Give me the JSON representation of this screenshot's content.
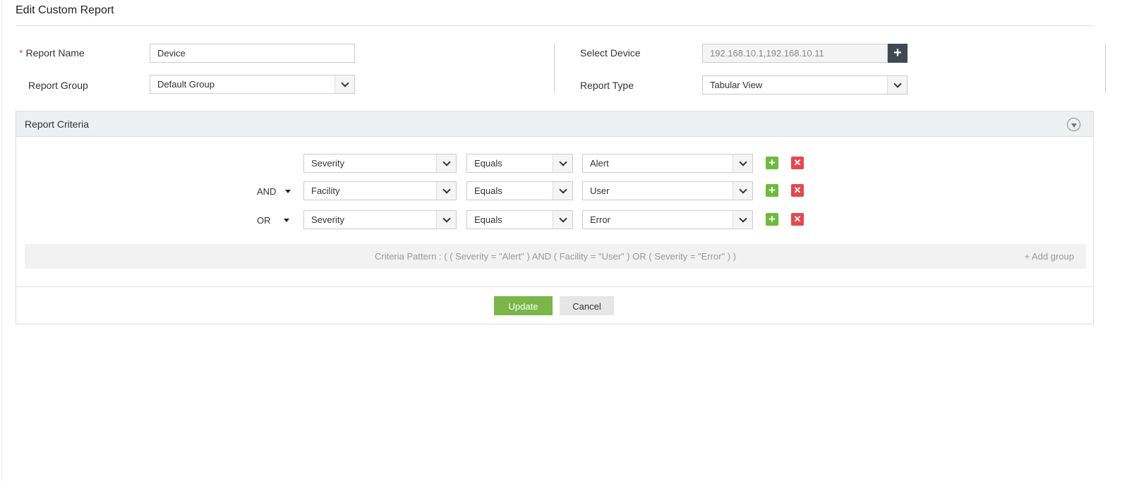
{
  "title": "Edit Custom Report",
  "form": {
    "report_name_label": "Report Name",
    "required_mark": "*",
    "report_name_value": "Device",
    "report_group_label": "Report Group",
    "report_group_value": "Default Group",
    "select_device_label": "Select Device",
    "select_device_value": "192.168.10.1,192.168.10.11",
    "add_device_symbol": "+",
    "report_type_label": "Report Type",
    "report_type_value": "Tabular View"
  },
  "criteria": {
    "header": "Report Criteria",
    "rows": [
      {
        "operator": "",
        "field": "Severity",
        "condition": "Equals",
        "value": "Alert"
      },
      {
        "operator": "AND",
        "field": "Facility",
        "condition": "Equals",
        "value": "User"
      },
      {
        "operator": "OR",
        "field": "Severity",
        "condition": "Equals",
        "value": "Error"
      }
    ],
    "add_symbol": "+",
    "remove_symbol": "✕",
    "pattern": "Criteria Pattern : ( ( Severity = \"Alert\" ) AND ( Facility = \"User\" ) OR ( Severity = \"Error\" ) )",
    "add_group": "+ Add group"
  },
  "buttons": {
    "update": "Update",
    "cancel": "Cancel"
  },
  "colors": {
    "update": "#7ab648",
    "cancel": "#e6e6e6",
    "add": "#6dbb3c",
    "remove": "#e5484d",
    "device_button": "#3d4a52"
  }
}
